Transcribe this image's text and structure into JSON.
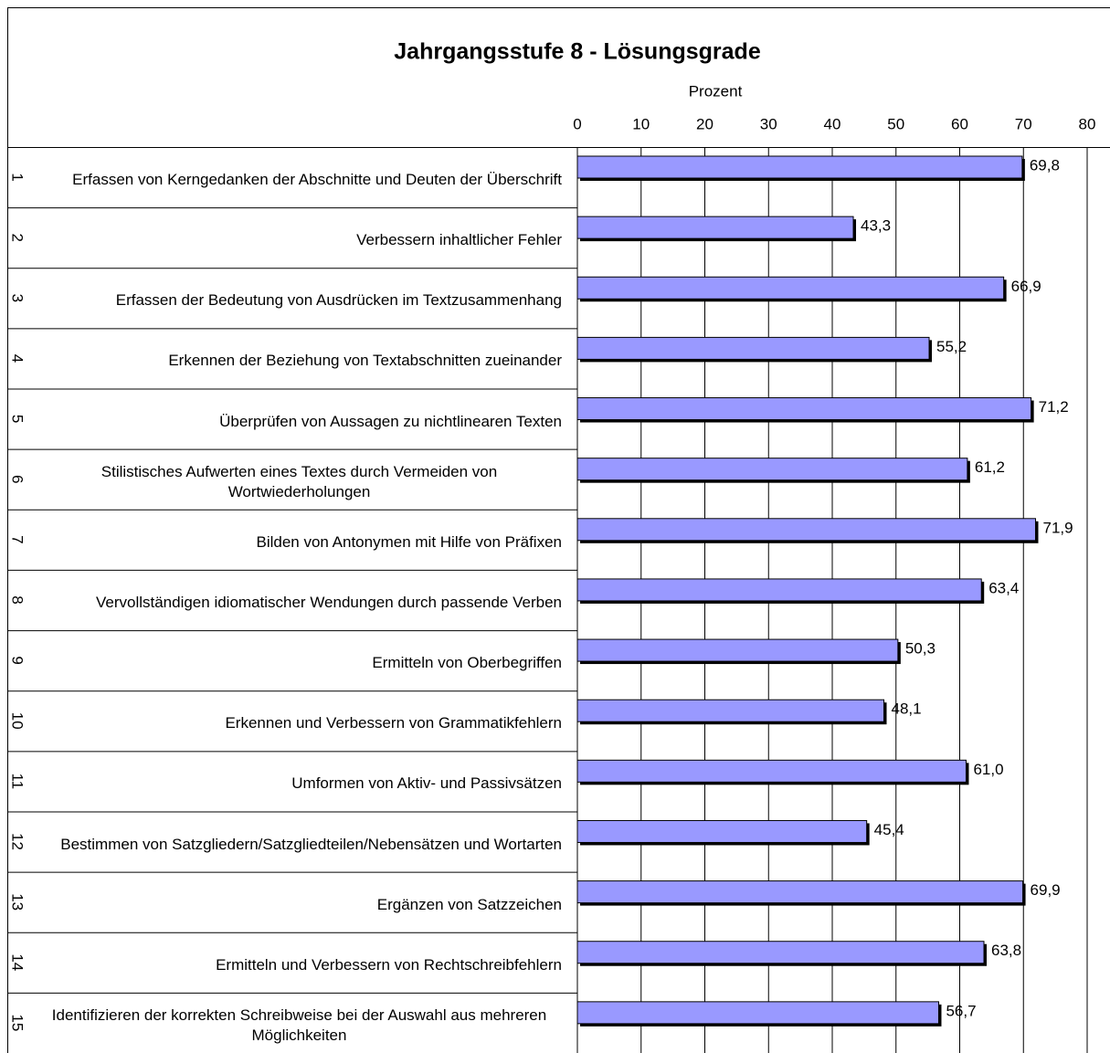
{
  "chart_data": {
    "type": "barh",
    "title": "Jahrgangsstufe  8 - Lösungsgrade",
    "x_label": "Prozent",
    "ids": [
      "1",
      "2",
      "3",
      "4",
      "5",
      "6",
      "7",
      "8",
      "9",
      "10",
      "11",
      "12",
      "13",
      "14",
      "15"
    ],
    "categories": [
      "Erfassen von Kerngedanken der Abschnitte und Deuten der Überschrift",
      "Verbessern inhaltlicher Fehler",
      "Erfassen der Bedeutung von Ausdrücken im Textzusammenhang",
      "Erkennen der Beziehung von Textabschnitten zueinander",
      "Überprüfen von Aussagen zu nichtlinearen Texten",
      "Stilistisches Aufwerten eines Textes durch Vermeiden von Wortwiederholungen",
      "Bilden von Antonymen mit Hilfe von Präfixen",
      "Vervollständigen idiomatischer Wendungen durch passende Verben",
      "Ermitteln von Oberbegriffen",
      "Erkennen und Verbessern von Grammatikfehlern",
      "Umformen von Aktiv- und Passivsätzen",
      "Bestimmen von Satzgliedern/Satzgliedteilen/Nebensätzen und Wortarten",
      "Ergänzen von Satzzeichen",
      "Ermitteln und Verbessern von Rechtschreibfehlern",
      "Identifizieren der korrekten Schreibweise bei der Auswahl aus mehreren Möglichkeiten"
    ],
    "values": [
      69.8,
      43.3,
      66.9,
      55.2,
      71.2,
      61.2,
      71.9,
      63.4,
      50.3,
      48.1,
      61.0,
      45.4,
      69.9,
      63.8,
      56.7
    ],
    "value_labels": [
      "69,8",
      "43,3",
      "66,9",
      "55,2",
      "71,2",
      "61,2",
      "71,9",
      "63,4",
      "50,3",
      "48,1",
      "61,0",
      "45,4",
      "69,9",
      "63,8",
      "56,7"
    ],
    "color": "#9999ff",
    "xlim": [
      0,
      80
    ],
    "xticks": [
      0,
      10,
      20,
      30,
      40,
      50,
      60,
      70,
      80
    ],
    "grid": true
  }
}
